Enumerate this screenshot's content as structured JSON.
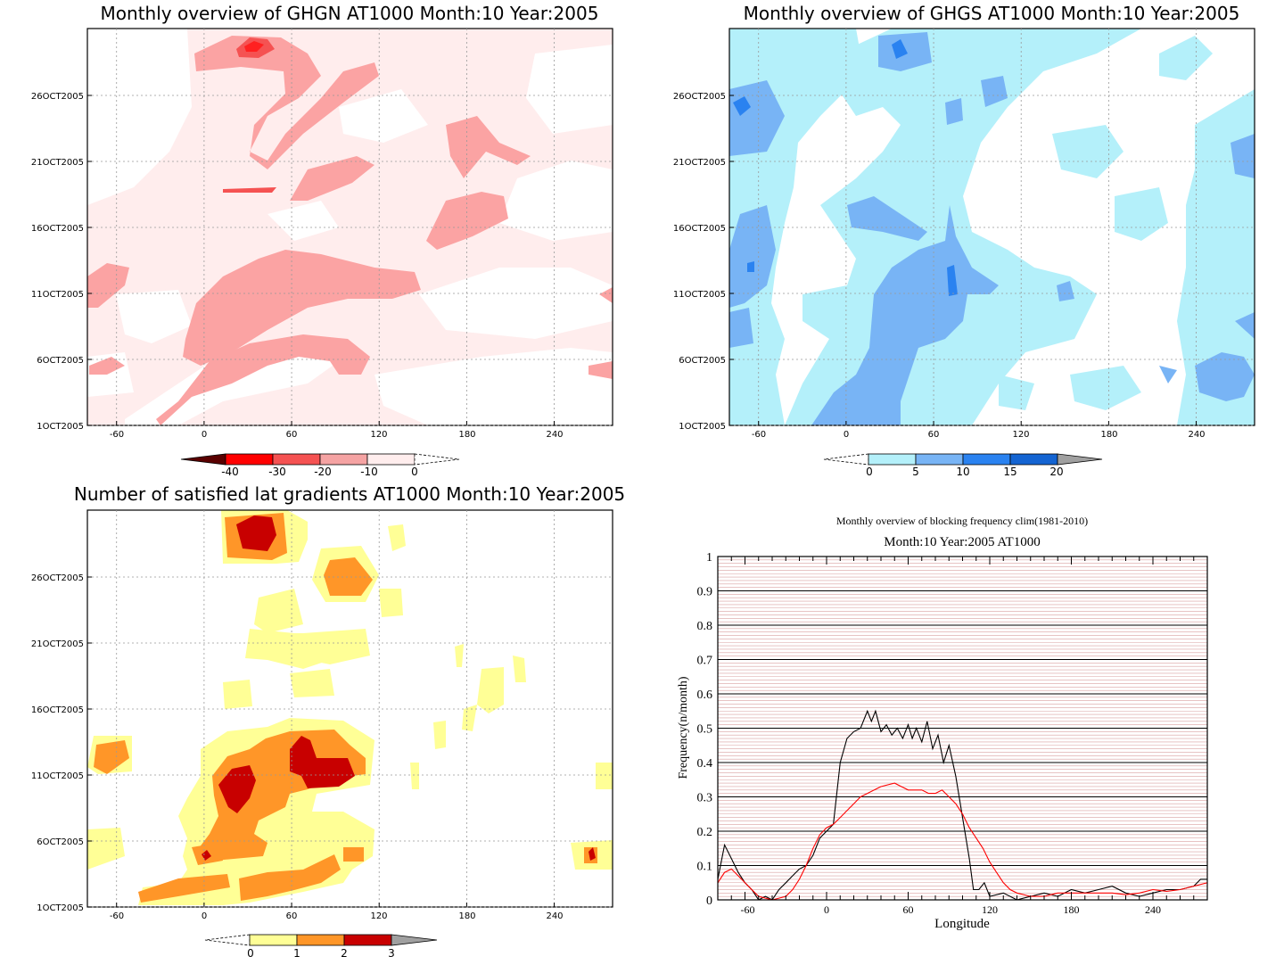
{
  "chart_data": [
    {
      "type": "heatmap",
      "title": "Monthly overview of GHGN AT1000 Month:10 Year:2005",
      "x_ticks": [
        "-60",
        "0",
        "60",
        "120",
        "180",
        "240"
      ],
      "x_values": [
        -60,
        0,
        60,
        120,
        180,
        240
      ],
      "y_ticks": [
        "1OCT2005",
        "6OCT2005",
        "11OCT2005",
        "16OCT2005",
        "21OCT2005",
        "26OCT2005"
      ],
      "xlim": [
        -80,
        280
      ],
      "colorbar": {
        "labels": [
          "-40",
          "-30",
          "-20",
          "-10",
          "0"
        ],
        "colors": [
          "#5a0000",
          "#ff0000",
          "#f55252",
          "#f5a3a3",
          "#ffeded"
        ]
      },
      "colors": {
        "light": "#ffeded",
        "mid": "#fba3a3",
        "strong": "#f55252",
        "peak": "#ff2020"
      }
    },
    {
      "type": "heatmap",
      "title": "Monthly overview of GHGS AT1000 Month:10 Year:2005",
      "x_ticks": [
        "-60",
        "0",
        "60",
        "120",
        "180",
        "240"
      ],
      "x_values": [
        -60,
        0,
        60,
        120,
        180,
        240
      ],
      "y_ticks": [
        "1OCT2005",
        "6OCT2005",
        "11OCT2005",
        "16OCT2005",
        "21OCT2005",
        "26OCT2005"
      ],
      "xlim": [
        -80,
        280
      ],
      "colorbar": {
        "labels": [
          "0",
          "5",
          "10",
          "15",
          "20"
        ],
        "colors": [
          "#b4f0fa",
          "#78b4f5",
          "#2a82f0",
          "#1464d2",
          "#a0a0a0"
        ]
      },
      "colors": {
        "light": "#b4f0fa",
        "mid": "#78b4f5",
        "strong": "#2a82f0"
      }
    },
    {
      "type": "heatmap",
      "title": "Number of satisfied lat gradients AT1000 Month:10 Year:2005",
      "x_ticks": [
        "-60",
        "0",
        "60",
        "120",
        "180",
        "240"
      ],
      "x_values": [
        -60,
        0,
        60,
        120,
        180,
        240
      ],
      "y_ticks": [
        "1OCT2005",
        "6OCT2005",
        "11OCT2005",
        "16OCT2005",
        "21OCT2005",
        "26OCT2005"
      ],
      "xlim": [
        -80,
        280
      ],
      "colorbar": {
        "labels": [
          "0",
          "1",
          "2",
          "3"
        ],
        "colors": [
          "#ffff96",
          "#ff9628",
          "#c80000",
          "#a0a0a0"
        ]
      },
      "colors": {
        "light": "#ffff96",
        "mid": "#ff9628",
        "strong": "#c80000"
      }
    },
    {
      "type": "line",
      "title": "Monthly overview of blocking frequency clim(1981-2010)",
      "subtitle": "Month:10 Year:2005  AT1000",
      "xlabel": "Longitude",
      "ylabel": "Frequency(n/month)",
      "xlim": [
        -80,
        280
      ],
      "ylim": [
        0,
        1
      ],
      "x_ticks": [
        -60,
        0,
        60,
        120,
        180,
        240
      ],
      "y_ticks": [
        "0",
        "0.1",
        "0.2",
        "0.3",
        "0.4",
        "0.5",
        "0.6",
        "0.7",
        "0.8",
        "0.9",
        "1"
      ],
      "series": [
        {
          "color": "#000000",
          "x": [
            -80,
            -75,
            -70,
            -65,
            -60,
            -55,
            -50,
            -45,
            -40,
            -35,
            -30,
            -25,
            -20,
            -15,
            -10,
            -5,
            0,
            5,
            10,
            15,
            20,
            25,
            30,
            33,
            36,
            40,
            44,
            48,
            52,
            56,
            60,
            63,
            66,
            70,
            74,
            78,
            82,
            86,
            90,
            95,
            100,
            105,
            108,
            112,
            116,
            120,
            130,
            140,
            150,
            160,
            170,
            180,
            190,
            200,
            210,
            220,
            230,
            240,
            250,
            260,
            270,
            275,
            280
          ],
          "y": [
            0.06,
            0.16,
            0.12,
            0.08,
            0.05,
            0.03,
            0.0,
            0.01,
            0.0,
            0.03,
            0.05,
            0.07,
            0.09,
            0.1,
            0.13,
            0.18,
            0.2,
            0.22,
            0.4,
            0.47,
            0.49,
            0.5,
            0.55,
            0.52,
            0.55,
            0.49,
            0.51,
            0.48,
            0.5,
            0.47,
            0.51,
            0.47,
            0.5,
            0.46,
            0.52,
            0.44,
            0.48,
            0.4,
            0.45,
            0.36,
            0.24,
            0.12,
            0.03,
            0.03,
            0.05,
            0.01,
            0.02,
            0.0,
            0.01,
            0.02,
            0.01,
            0.03,
            0.02,
            0.03,
            0.04,
            0.02,
            0.01,
            0.02,
            0.03,
            0.03,
            0.04,
            0.06,
            0.06
          ]
        },
        {
          "color": "#ff0000",
          "x": [
            -80,
            -75,
            -70,
            -65,
            -60,
            -55,
            -50,
            -45,
            -40,
            -35,
            -30,
            -25,
            -20,
            -15,
            -10,
            -5,
            0,
            5,
            10,
            15,
            20,
            25,
            30,
            35,
            40,
            45,
            50,
            55,
            60,
            65,
            70,
            75,
            80,
            85,
            90,
            95,
            100,
            105,
            110,
            115,
            120,
            125,
            130,
            135,
            140,
            150,
            160,
            170,
            180,
            190,
            200,
            210,
            220,
            230,
            240,
            250,
            260,
            270,
            280
          ],
          "y": [
            0.05,
            0.08,
            0.09,
            0.07,
            0.05,
            0.03,
            0.01,
            0.005,
            0.0,
            0.005,
            0.01,
            0.03,
            0.06,
            0.1,
            0.15,
            0.19,
            0.21,
            0.22,
            0.24,
            0.26,
            0.28,
            0.3,
            0.31,
            0.32,
            0.33,
            0.335,
            0.34,
            0.33,
            0.32,
            0.32,
            0.32,
            0.31,
            0.31,
            0.32,
            0.3,
            0.28,
            0.25,
            0.21,
            0.18,
            0.15,
            0.11,
            0.08,
            0.05,
            0.03,
            0.02,
            0.01,
            0.01,
            0.02,
            0.02,
            0.02,
            0.02,
            0.02,
            0.015,
            0.02,
            0.03,
            0.025,
            0.03,
            0.04,
            0.05
          ]
        }
      ]
    }
  ]
}
